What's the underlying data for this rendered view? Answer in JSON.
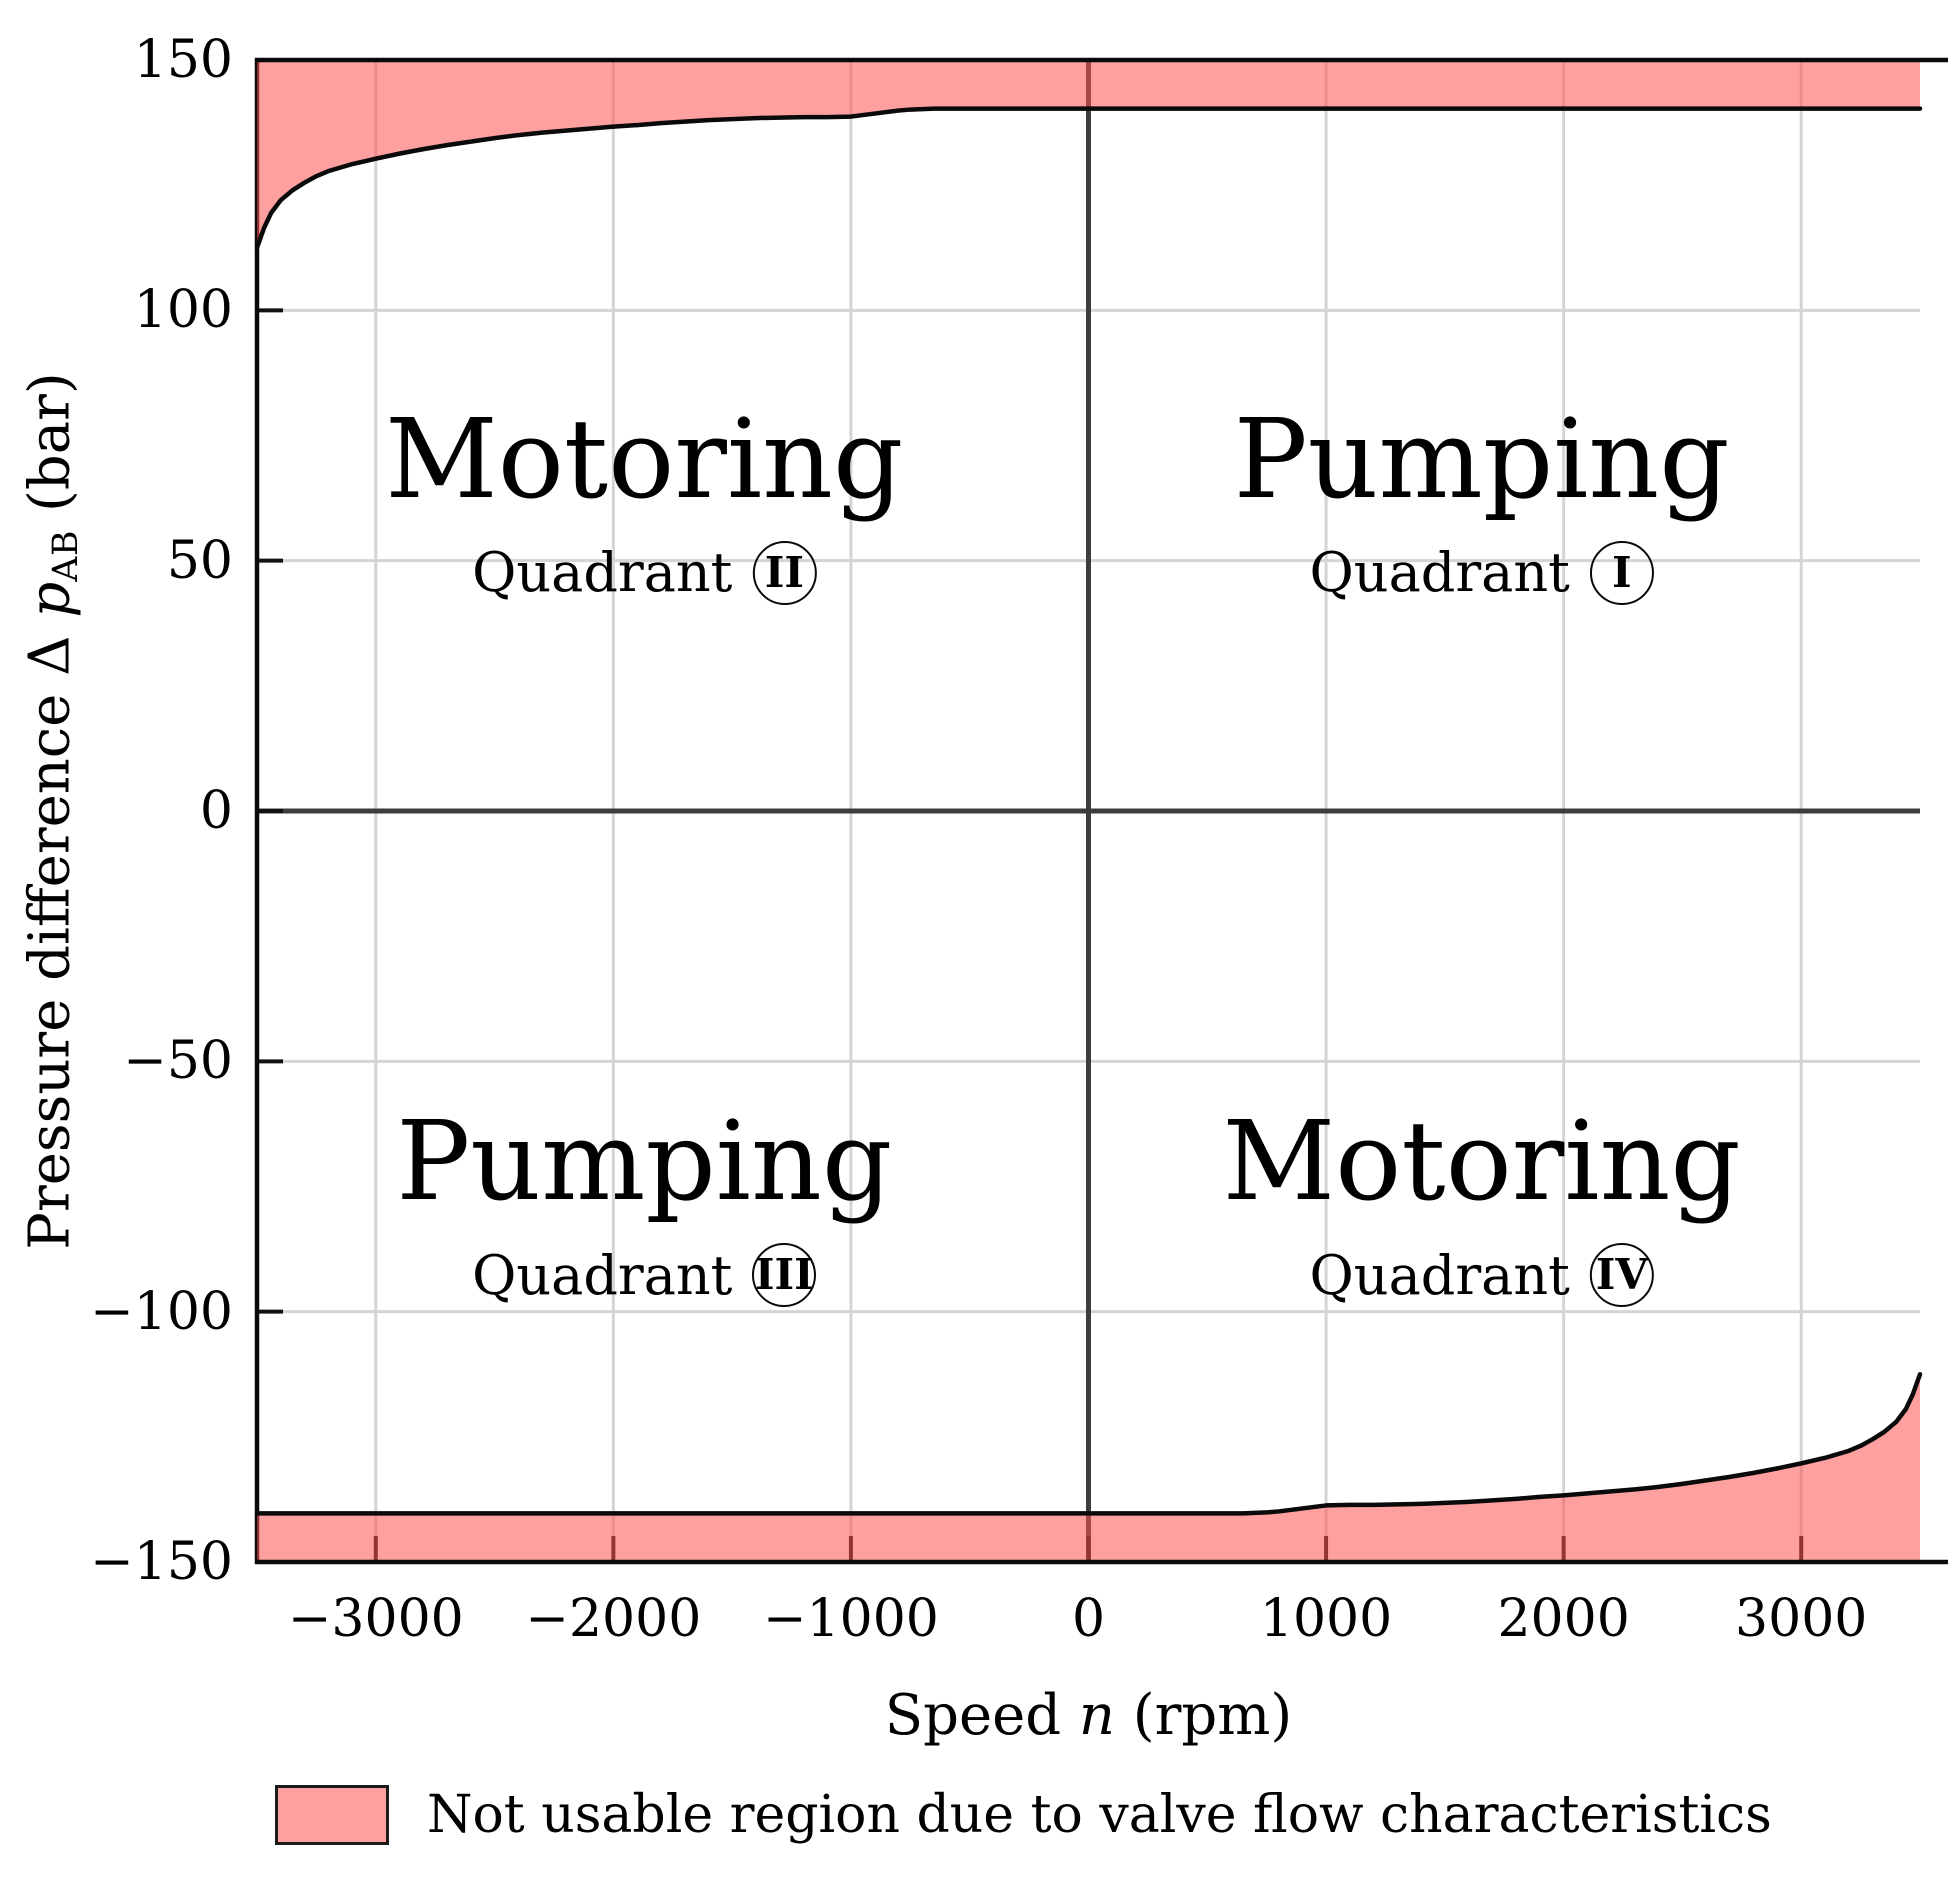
{
  "chart_data": {
    "type": "area",
    "title": "",
    "xlabel_parts": {
      "pre": "Speed ",
      "var": "n",
      "post": " (rpm)"
    },
    "ylabel_parts": {
      "pre": "Pressure difference Δ ",
      "var": "p",
      "sub": "AB",
      "post": " (bar)"
    },
    "xlim": [
      -3500,
      3500
    ],
    "ylim": [
      -150,
      150
    ],
    "xticks": [
      -3000,
      -2000,
      -1000,
      0,
      1000,
      2000,
      3000
    ],
    "yticks": [
      150,
      100,
      50,
      0,
      -50,
      -100,
      -150
    ],
    "grid": true,
    "legend_position": "below-left",
    "colors": {
      "region_fill": "#ff5252",
      "region_fill_opacity": 0.55,
      "grid": "#d4d4d4",
      "zero_line": "#3d3d3d",
      "axis": "#0a0a0a",
      "tick": "#111111"
    },
    "series": [
      {
        "name": "upper-not-usable-boundary",
        "fill_to": 150,
        "points": [
          [
            -3500,
            112.5
          ],
          [
            -3470,
            116.5
          ],
          [
            -3440,
            119.5
          ],
          [
            -3400,
            122
          ],
          [
            -3350,
            124
          ],
          [
            -3300,
            125.5
          ],
          [
            -3250,
            126.8
          ],
          [
            -3200,
            127.8
          ],
          [
            -3150,
            128.5
          ],
          [
            -3100,
            129.2
          ],
          [
            -3000,
            130.3
          ],
          [
            -2900,
            131.3
          ],
          [
            -2800,
            132.2
          ],
          [
            -2700,
            133
          ],
          [
            -2600,
            133.7
          ],
          [
            -2500,
            134.4
          ],
          [
            -2400,
            135
          ],
          [
            -2300,
            135.5
          ],
          [
            -2200,
            135.9
          ],
          [
            -2100,
            136.3
          ],
          [
            -2000,
            136.7
          ],
          [
            -1900,
            137
          ],
          [
            -1800,
            137.4
          ],
          [
            -1700,
            137.7
          ],
          [
            -1600,
            138
          ],
          [
            -1500,
            138.2
          ],
          [
            -1400,
            138.4
          ],
          [
            -1300,
            138.5
          ],
          [
            -1200,
            138.6
          ],
          [
            -1100,
            138.6
          ],
          [
            -1000,
            138.7
          ],
          [
            -950,
            139
          ],
          [
            -900,
            139.3
          ],
          [
            -850,
            139.6
          ],
          [
            -800,
            139.9
          ],
          [
            -750,
            140.1
          ],
          [
            -700,
            140.2
          ],
          [
            -650,
            140.3
          ],
          [
            -500,
            140.3
          ],
          [
            0,
            140.3
          ],
          [
            1000,
            140.3
          ],
          [
            2000,
            140.3
          ],
          [
            3000,
            140.3
          ],
          [
            3500,
            140.3
          ]
        ]
      },
      {
        "name": "lower-not-usable-boundary",
        "fill_to": -150,
        "points": [
          [
            -3500,
            -140.3
          ],
          [
            -3000,
            -140.3
          ],
          [
            -2000,
            -140.3
          ],
          [
            -1000,
            -140.3
          ],
          [
            0,
            -140.3
          ],
          [
            500,
            -140.3
          ],
          [
            650,
            -140.3
          ],
          [
            700,
            -140.2
          ],
          [
            750,
            -140.1
          ],
          [
            800,
            -139.9
          ],
          [
            850,
            -139.6
          ],
          [
            900,
            -139.3
          ],
          [
            950,
            -139
          ],
          [
            1000,
            -138.7
          ],
          [
            1100,
            -138.6
          ],
          [
            1200,
            -138.6
          ],
          [
            1300,
            -138.5
          ],
          [
            1400,
            -138.4
          ],
          [
            1500,
            -138.2
          ],
          [
            1600,
            -138
          ],
          [
            1700,
            -137.7
          ],
          [
            1800,
            -137.4
          ],
          [
            1900,
            -137
          ],
          [
            2000,
            -136.7
          ],
          [
            2100,
            -136.3
          ],
          [
            2200,
            -135.9
          ],
          [
            2300,
            -135.5
          ],
          [
            2400,
            -135
          ],
          [
            2500,
            -134.4
          ],
          [
            2600,
            -133.7
          ],
          [
            2700,
            -133
          ],
          [
            2800,
            -132.2
          ],
          [
            2900,
            -131.3
          ],
          [
            3000,
            -130.3
          ],
          [
            3100,
            -129.2
          ],
          [
            3150,
            -128.5
          ],
          [
            3200,
            -127.8
          ],
          [
            3250,
            -126.8
          ],
          [
            3300,
            -125.5
          ],
          [
            3350,
            -124
          ],
          [
            3400,
            -122
          ],
          [
            3440,
            -119.5
          ],
          [
            3470,
            -116.5
          ],
          [
            3500,
            -112.5
          ]
        ]
      }
    ],
    "quadrant_labels": [
      {
        "word": "Motoring",
        "sub": "Quadrant",
        "numeral": "II",
        "cx_n": -1870,
        "word_bar": 70.3
      },
      {
        "word": "Pumping",
        "sub": "Quadrant",
        "numeral": "I",
        "cx_n": 1655,
        "word_bar": 70.3
      },
      {
        "word": "Pumping",
        "sub": "Quadrant",
        "numeral": "III",
        "cx_n": -1870,
        "word_bar": -70
      },
      {
        "word": "Motoring",
        "sub": "Quadrant",
        "numeral": "IV",
        "cx_n": 1655,
        "word_bar": -70
      }
    ],
    "legend": {
      "label": "Not usable region due to valve flow characteristics"
    }
  }
}
